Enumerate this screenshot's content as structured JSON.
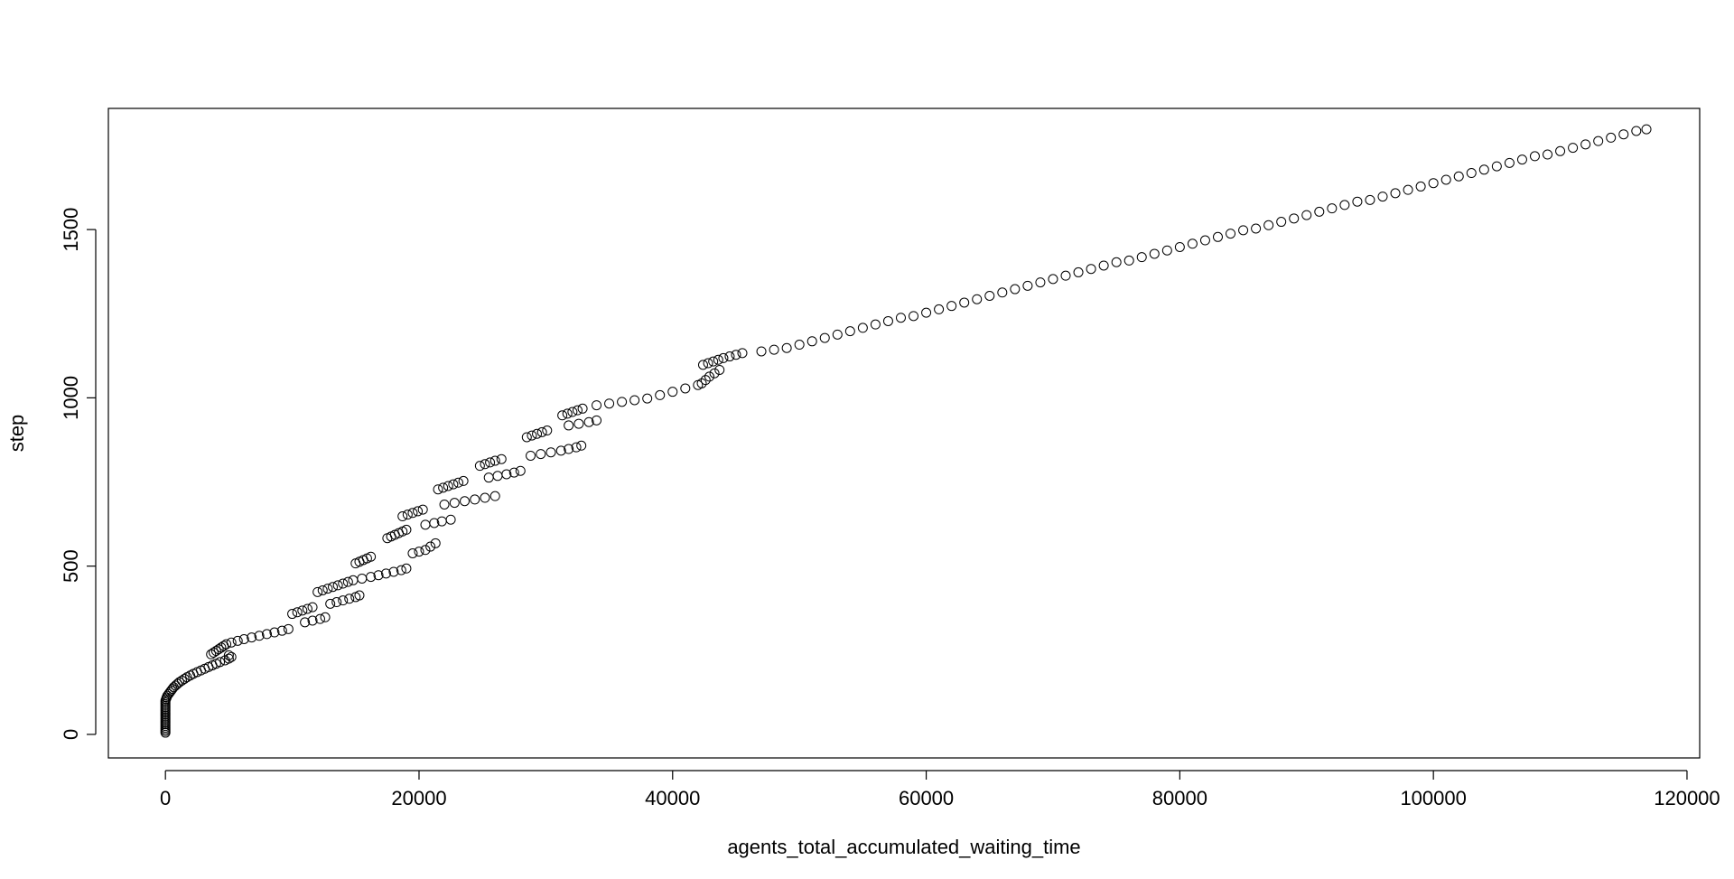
{
  "chart_data": {
    "type": "scatter",
    "title": "",
    "xlabel": "agents_total_accumulated_waiting_time",
    "ylabel": "step",
    "xlim": [
      -4500,
      121000
    ],
    "ylim": [
      -70,
      1860
    ],
    "x_ticks": [
      0,
      20000,
      40000,
      60000,
      80000,
      100000,
      120000
    ],
    "x_tick_labels": [
      "0",
      "20000",
      "40000",
      "60000",
      "80000",
      "100000",
      "120000"
    ],
    "y_ticks": [
      0,
      500,
      1000,
      1500
    ],
    "y_tick_labels": [
      "0",
      "500",
      "1000",
      "1500"
    ],
    "marker": "open-circle",
    "grid": false,
    "legend": "none",
    "colors": {
      "points": "#000000",
      "axes": "#000000",
      "background": "#ffffff"
    },
    "series": [
      {
        "points": [
          [
            0,
            5
          ],
          [
            0,
            10
          ],
          [
            0,
            15
          ],
          [
            0,
            20
          ],
          [
            0,
            25
          ],
          [
            0,
            30
          ],
          [
            0,
            35
          ],
          [
            0,
            40
          ],
          [
            0,
            45
          ],
          [
            0,
            50
          ],
          [
            0,
            55
          ],
          [
            0,
            60
          ],
          [
            0,
            65
          ],
          [
            0,
            70
          ],
          [
            0,
            75
          ],
          [
            0,
            80
          ],
          [
            0,
            85
          ],
          [
            0,
            90
          ],
          [
            0,
            95
          ],
          [
            0,
            100
          ],
          [
            50,
            105
          ],
          [
            100,
            110
          ],
          [
            150,
            115
          ],
          [
            250,
            120
          ],
          [
            350,
            125
          ],
          [
            450,
            130
          ],
          [
            550,
            135
          ],
          [
            650,
            140
          ],
          [
            800,
            145
          ],
          [
            950,
            150
          ],
          [
            1100,
            155
          ],
          [
            1300,
            160
          ],
          [
            1500,
            165
          ],
          [
            1700,
            170
          ],
          [
            1950,
            175
          ],
          [
            2200,
            180
          ],
          [
            2500,
            185
          ],
          [
            2800,
            190
          ],
          [
            3100,
            195
          ],
          [
            3400,
            200
          ],
          [
            3700,
            205
          ],
          [
            4000,
            210
          ],
          [
            4300,
            215
          ],
          [
            4700,
            220
          ],
          [
            5000,
            225
          ],
          [
            5200,
            230
          ],
          [
            5000,
            235
          ],
          [
            3600,
            238
          ],
          [
            3800,
            243
          ],
          [
            4000,
            248
          ],
          [
            4200,
            253
          ],
          [
            4400,
            258
          ],
          [
            4600,
            263
          ],
          [
            4800,
            268
          ],
          [
            5200,
            273
          ],
          [
            5700,
            278
          ],
          [
            6200,
            283
          ],
          [
            6800,
            288
          ],
          [
            7400,
            293
          ],
          [
            8000,
            298
          ],
          [
            8600,
            303
          ],
          [
            9200,
            308
          ],
          [
            9700,
            313
          ],
          [
            10000,
            358
          ],
          [
            10400,
            363
          ],
          [
            10800,
            368
          ],
          [
            11200,
            373
          ],
          [
            11600,
            378
          ],
          [
            11000,
            333
          ],
          [
            11600,
            338
          ],
          [
            12200,
            343
          ],
          [
            12600,
            348
          ],
          [
            12000,
            423
          ],
          [
            12400,
            428
          ],
          [
            12800,
            433
          ],
          [
            13200,
            438
          ],
          [
            13600,
            443
          ],
          [
            14000,
            448
          ],
          [
            14400,
            453
          ],
          [
            13000,
            388
          ],
          [
            13500,
            393
          ],
          [
            14000,
            398
          ],
          [
            14500,
            403
          ],
          [
            15000,
            408
          ],
          [
            15300,
            413
          ],
          [
            15000,
            508
          ],
          [
            15300,
            513
          ],
          [
            15600,
            518
          ],
          [
            15900,
            523
          ],
          [
            16200,
            528
          ],
          [
            14800,
            458
          ],
          [
            15500,
            463
          ],
          [
            16200,
            468
          ],
          [
            16800,
            473
          ],
          [
            17400,
            478
          ],
          [
            18000,
            483
          ],
          [
            18600,
            488
          ],
          [
            19000,
            493
          ],
          [
            17500,
            583
          ],
          [
            17800,
            588
          ],
          [
            18100,
            593
          ],
          [
            18400,
            598
          ],
          [
            18700,
            603
          ],
          [
            19000,
            608
          ],
          [
            19500,
            538
          ],
          [
            20000,
            543
          ],
          [
            20500,
            548
          ],
          [
            20900,
            558
          ],
          [
            21300,
            568
          ],
          [
            18700,
            648
          ],
          [
            19100,
            653
          ],
          [
            19500,
            658
          ],
          [
            19900,
            663
          ],
          [
            20300,
            668
          ],
          [
            20500,
            623
          ],
          [
            21200,
            628
          ],
          [
            21800,
            633
          ],
          [
            22500,
            638
          ],
          [
            21500,
            728
          ],
          [
            21900,
            733
          ],
          [
            22300,
            738
          ],
          [
            22700,
            743
          ],
          [
            23100,
            748
          ],
          [
            23500,
            753
          ],
          [
            22000,
            683
          ],
          [
            22800,
            688
          ],
          [
            23600,
            693
          ],
          [
            24400,
            698
          ],
          [
            25200,
            703
          ],
          [
            26000,
            708
          ],
          [
            24800,
            798
          ],
          [
            25200,
            803
          ],
          [
            25600,
            808
          ],
          [
            26000,
            813
          ],
          [
            26500,
            818
          ],
          [
            25500,
            763
          ],
          [
            26200,
            768
          ],
          [
            26900,
            773
          ],
          [
            27500,
            778
          ],
          [
            28000,
            783
          ],
          [
            28500,
            883
          ],
          [
            28900,
            888
          ],
          [
            29300,
            893
          ],
          [
            29700,
            898
          ],
          [
            30100,
            903
          ],
          [
            28800,
            828
          ],
          [
            29600,
            833
          ],
          [
            30400,
            838
          ],
          [
            31200,
            843
          ],
          [
            31800,
            848
          ],
          [
            32400,
            853
          ],
          [
            32800,
            858
          ],
          [
            31300,
            948
          ],
          [
            31700,
            953
          ],
          [
            32100,
            958
          ],
          [
            32500,
            963
          ],
          [
            32900,
            968
          ],
          [
            31800,
            918
          ],
          [
            32600,
            923
          ],
          [
            33400,
            928
          ],
          [
            34000,
            933
          ],
          [
            34000,
            978
          ],
          [
            35000,
            983
          ],
          [
            36000,
            988
          ],
          [
            37000,
            993
          ],
          [
            38000,
            998
          ],
          [
            39000,
            1008
          ],
          [
            40000,
            1018
          ],
          [
            41000,
            1028
          ],
          [
            42000,
            1038
          ],
          [
            42300,
            1043
          ],
          [
            42600,
            1053
          ],
          [
            42900,
            1063
          ],
          [
            43300,
            1073
          ],
          [
            43700,
            1083
          ],
          [
            42400,
            1098
          ],
          [
            42800,
            1103
          ],
          [
            43200,
            1108
          ],
          [
            43600,
            1113
          ],
          [
            44000,
            1118
          ],
          [
            44500,
            1123
          ],
          [
            45000,
            1128
          ],
          [
            45500,
            1133
          ],
          [
            47000,
            1138
          ],
          [
            48000,
            1143
          ],
          [
            49000,
            1148
          ],
          [
            50000,
            1158
          ],
          [
            51000,
            1168
          ],
          [
            52000,
            1178
          ],
          [
            53000,
            1188
          ],
          [
            54000,
            1198
          ],
          [
            55000,
            1208
          ],
          [
            56000,
            1218
          ],
          [
            57000,
            1228
          ],
          [
            58000,
            1238
          ],
          [
            59000,
            1243
          ],
          [
            60000,
            1253
          ],
          [
            61000,
            1263
          ],
          [
            62000,
            1273
          ],
          [
            63000,
            1283
          ],
          [
            64000,
            1293
          ],
          [
            65000,
            1303
          ],
          [
            66000,
            1313
          ],
          [
            67000,
            1323
          ],
          [
            68000,
            1333
          ],
          [
            69000,
            1343
          ],
          [
            70000,
            1353
          ],
          [
            71000,
            1363
          ],
          [
            72000,
            1373
          ],
          [
            73000,
            1383
          ],
          [
            74000,
            1393
          ],
          [
            75000,
            1403
          ],
          [
            76000,
            1408
          ],
          [
            77000,
            1418
          ],
          [
            78000,
            1428
          ],
          [
            79000,
            1438
          ],
          [
            80000,
            1448
          ],
          [
            81000,
            1458
          ],
          [
            82000,
            1468
          ],
          [
            83000,
            1478
          ],
          [
            84000,
            1488
          ],
          [
            85000,
            1498
          ],
          [
            86000,
            1503
          ],
          [
            87000,
            1513
          ],
          [
            88000,
            1523
          ],
          [
            89000,
            1533
          ],
          [
            90000,
            1543
          ],
          [
            91000,
            1553
          ],
          [
            92000,
            1563
          ],
          [
            93000,
            1573
          ],
          [
            94000,
            1583
          ],
          [
            95000,
            1588
          ],
          [
            96000,
            1598
          ],
          [
            97000,
            1608
          ],
          [
            98000,
            1618
          ],
          [
            99000,
            1628
          ],
          [
            100000,
            1638
          ],
          [
            101000,
            1648
          ],
          [
            102000,
            1658
          ],
          [
            103000,
            1668
          ],
          [
            104000,
            1678
          ],
          [
            105000,
            1688
          ],
          [
            106000,
            1698
          ],
          [
            107000,
            1708
          ],
          [
            108000,
            1718
          ],
          [
            109000,
            1723
          ],
          [
            110000,
            1733
          ],
          [
            111000,
            1743
          ],
          [
            112000,
            1753
          ],
          [
            113000,
            1763
          ],
          [
            114000,
            1773
          ],
          [
            115000,
            1783
          ],
          [
            116000,
            1793
          ],
          [
            116800,
            1798
          ]
        ]
      }
    ]
  }
}
